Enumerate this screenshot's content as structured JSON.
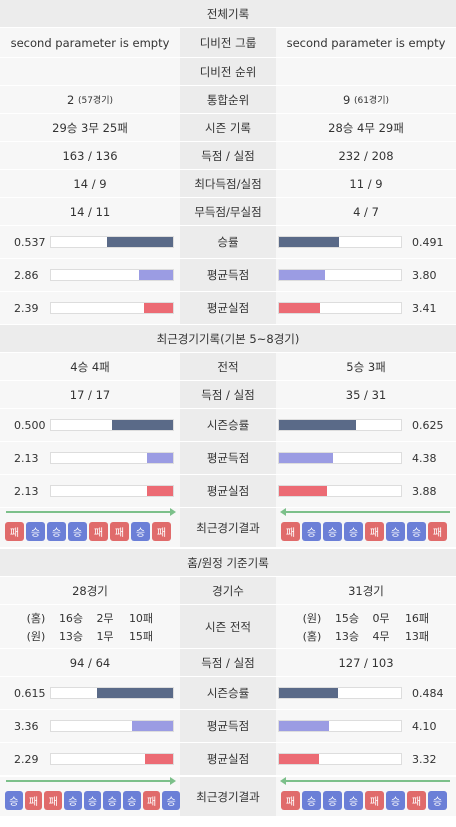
{
  "colors": {
    "navy": "#5a6a88",
    "blue": "#9b9ce3",
    "red": "#ec6b74",
    "win": "#6b7fd7",
    "loss": "#e06b6b",
    "arrow": "#7cc08a"
  },
  "overall": {
    "title": "전체기록",
    "group_left": "second parameter is empty",
    "group_label": "디비전 그룹",
    "rank_label": "디비전 순위",
    "total_rank_left": "2",
    "total_rank_left_games": "(57경기)",
    "total_rank_label": "통합순위",
    "total_rank_right": "9",
    "total_rank_right_games": "(61경기)",
    "group_right": "second parameter is empty",
    "season_left": "29승 3무 25패",
    "season_label": "시즌 기록",
    "season_right": "28승 4무 29패",
    "scored_left": "163 / 136",
    "scored_label": "득점 / 실점",
    "scored_right": "232 / 208",
    "max_left": "14 / 9",
    "max_label": "최다득점/실점",
    "max_right": "11 / 9",
    "zero_left": "14 / 11",
    "zero_label": "무득점/무실점",
    "zero_right": "4 / 7",
    "bars": [
      {
        "label": "승률",
        "left": "0.537",
        "right": "0.491",
        "left_frac": 0.54,
        "right_frac": 0.49,
        "color": "navy"
      },
      {
        "label": "평균득점",
        "left": "2.86",
        "right": "3.80",
        "left_frac": 0.28,
        "right_frac": 0.38,
        "color": "blue"
      },
      {
        "label": "평균실점",
        "left": "2.39",
        "right": "3.41",
        "left_frac": 0.24,
        "right_frac": 0.34,
        "color": "red"
      }
    ]
  },
  "recent": {
    "title": "최근경기기록(기본 5~8경기)",
    "record_left": "4승 4패",
    "record_label": "전적",
    "record_right": "5승 3패",
    "scored_left": "17 / 17",
    "scored_label": "득점 / 실점",
    "scored_right": "35 / 31",
    "bars": [
      {
        "label": "시즌승률",
        "left": "0.500",
        "right": "0.625",
        "left_frac": 0.5,
        "right_frac": 0.63,
        "color": "navy"
      },
      {
        "label": "평균득점",
        "left": "2.13",
        "right": "4.38",
        "left_frac": 0.21,
        "right_frac": 0.44,
        "color": "blue"
      },
      {
        "label": "평균실점",
        "left": "2.13",
        "right": "3.88",
        "left_frac": 0.21,
        "right_frac": 0.39,
        "color": "red"
      }
    ],
    "results_label": "최근경기결과",
    "results_left": [
      "패",
      "승",
      "승",
      "승",
      "패",
      "패",
      "승",
      "패"
    ],
    "results_right": [
      "패",
      "승",
      "승",
      "승",
      "패",
      "승",
      "승",
      "패"
    ]
  },
  "homeaway": {
    "title": "홈/원정 기준기록",
    "games_left": "28경기",
    "games_label": "경기수",
    "games_right": "31경기",
    "season_label": "시즌 전적",
    "left_rows": [
      [
        "(홈)",
        "16승",
        "2무",
        "10패"
      ],
      [
        "(원)",
        "13승",
        "1무",
        "15패"
      ]
    ],
    "right_rows": [
      [
        "(원)",
        "15승",
        "0무",
        "16패"
      ],
      [
        "(홈)",
        "13승",
        "4무",
        "13패"
      ]
    ],
    "scored_left": "94 / 64",
    "scored_label": "득점 / 실점",
    "scored_right": "127 / 103",
    "bars": [
      {
        "label": "시즌승률",
        "left": "0.615",
        "right": "0.484",
        "left_frac": 0.62,
        "right_frac": 0.48,
        "color": "navy"
      },
      {
        "label": "평균득점",
        "left": "3.36",
        "right": "4.10",
        "left_frac": 0.34,
        "right_frac": 0.41,
        "color": "blue"
      },
      {
        "label": "평균실점",
        "left": "2.29",
        "right": "3.32",
        "left_frac": 0.23,
        "right_frac": 0.33,
        "color": "red"
      }
    ],
    "results_label": "최근경기결과",
    "results_left": [
      "승",
      "패",
      "패",
      "승",
      "승",
      "승",
      "승",
      "패",
      "승"
    ],
    "results_right": [
      "패",
      "승",
      "승",
      "승",
      "패",
      "승",
      "패",
      "승"
    ]
  }
}
